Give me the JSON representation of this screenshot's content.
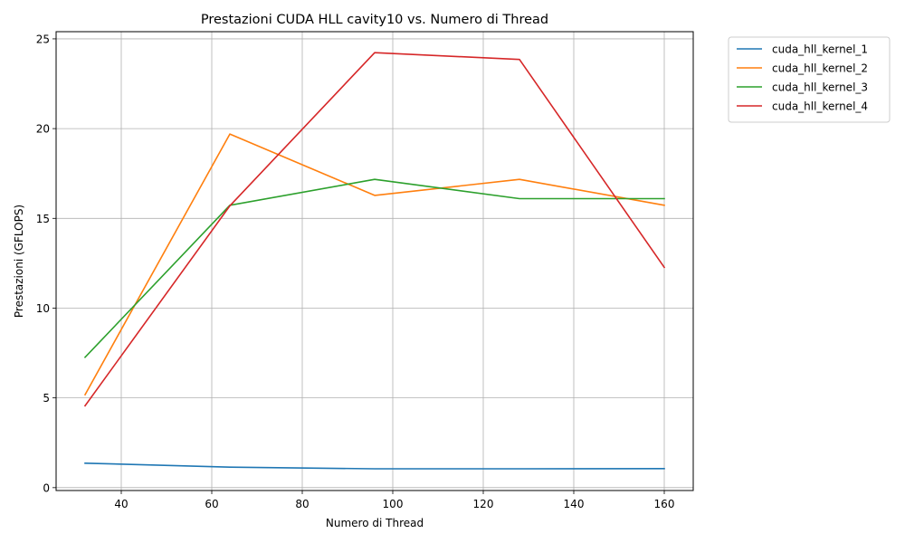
{
  "chart_data": {
    "type": "line",
    "title": "Prestazioni CUDA HLL cavity10 vs. Numero di Thread",
    "xlabel": "Numero di Thread",
    "ylabel": "Prestazioni (GFLOPS)",
    "x": [
      32,
      64,
      96,
      128,
      160
    ],
    "xlim": [
      25.6,
      166.4
    ],
    "ylim": [
      -0.16,
      25.4
    ],
    "xticks": [
      "40",
      "60",
      "80",
      "100",
      "120",
      "140",
      "160"
    ],
    "yticks": [
      "0",
      "5",
      "10",
      "15",
      "20",
      "25"
    ],
    "grid": true,
    "legend_position": "outside top-right",
    "series": [
      {
        "name": "cuda_hll_kernel_1",
        "color": "#1f77b4",
        "values": [
          1.36,
          1.14,
          1.05,
          1.05,
          1.06
        ]
      },
      {
        "name": "cuda_hll_kernel_2",
        "color": "#ff7f0e",
        "values": [
          5.18,
          19.7,
          16.28,
          17.17,
          15.73
        ]
      },
      {
        "name": "cuda_hll_kernel_3",
        "color": "#2ca02c",
        "values": [
          7.26,
          15.73,
          17.17,
          16.1,
          16.1
        ]
      },
      {
        "name": "cuda_hll_kernel_4",
        "color": "#d62728",
        "values": [
          4.56,
          15.7,
          24.23,
          23.85,
          12.27
        ]
      }
    ]
  }
}
